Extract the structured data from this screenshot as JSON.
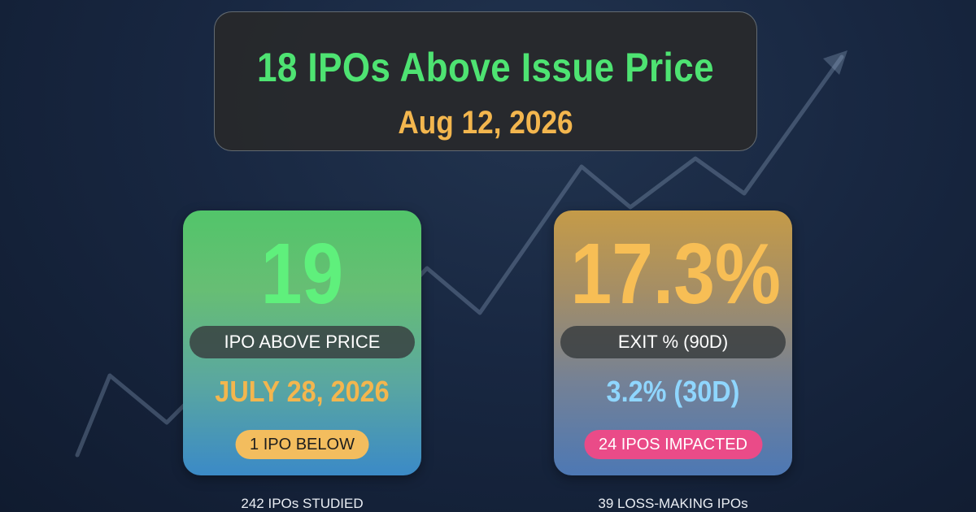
{
  "header": {
    "title": "18 IPOs Above Issue Price",
    "date": "Aug 12, 2026"
  },
  "cards": [
    {
      "value": "19",
      "label": "IPO ABOVE PRICE",
      "subvalue": "JULY 28, 2026",
      "badge": "1 IPO BELOW",
      "footnote": "242 IPOs STUDIED"
    },
    {
      "value": "17.3%",
      "label": "EXIT % (90D)",
      "subvalue": "3.2% (30D)",
      "badge": "24 IPOS IMPACTED",
      "footnote": "39 LOSS-MAKING IPOs"
    }
  ],
  "colors": {
    "title_green": "#4ee372",
    "date_gold": "#f3b64e",
    "big_green": "#5ff07c",
    "big_gold": "#f7be55",
    "sub_blue": "#8fd6ff",
    "badge_gold": "#f3bd5e",
    "badge_pink": "#ea4b88",
    "background": "#182741"
  },
  "icons": [
    "trend-arrow-icon"
  ]
}
